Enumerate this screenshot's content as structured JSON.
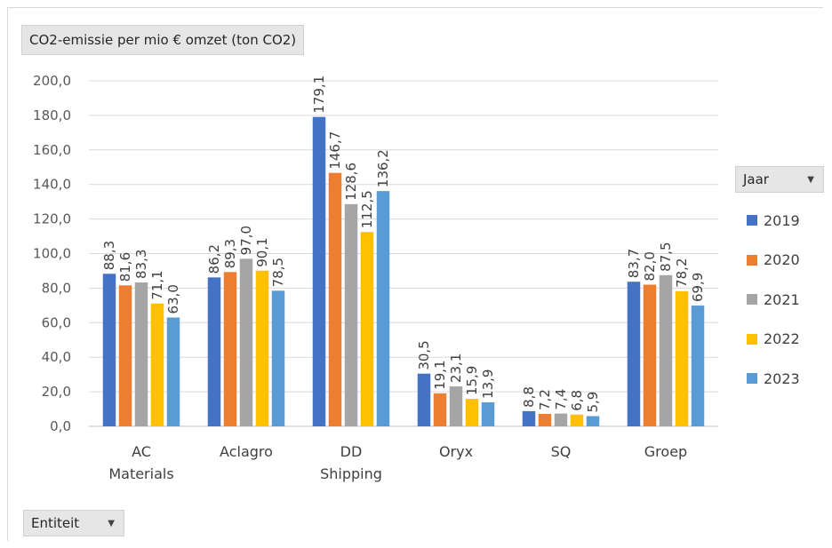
{
  "chart_data": {
    "type": "bar",
    "title": "CO2-emissie per mio  € omzet (ton CO2)",
    "categories": [
      [
        "AC",
        "Materials"
      ],
      [
        "Aclagro"
      ],
      [
        "DD",
        "Shipping"
      ],
      [
        "Oryx"
      ],
      [
        "SQ"
      ],
      [
        "Groep"
      ]
    ],
    "series": [
      {
        "name": "2019",
        "color": "#4472c4",
        "values": [
          88.3,
          86.2,
          179.1,
          30.5,
          8.8,
          83.7
        ],
        "labels": [
          "88,3",
          "86,2",
          "179,1",
          "30,5",
          "8,8",
          "83,7"
        ]
      },
      {
        "name": "2020",
        "color": "#ed7d31",
        "values": [
          81.6,
          89.3,
          146.7,
          19.1,
          7.2,
          82.0
        ],
        "labels": [
          "81,6",
          "89,3",
          "146,7",
          "19,1",
          "7,2",
          "82,0"
        ]
      },
      {
        "name": "2021",
        "color": "#a5a5a5",
        "values": [
          83.3,
          97.0,
          128.6,
          23.1,
          7.4,
          87.5
        ],
        "labels": [
          "83,3",
          "97,0",
          "128,6",
          "23,1",
          "7,4",
          "87,5"
        ]
      },
      {
        "name": "2022",
        "color": "#ffc000",
        "values": [
          71.1,
          90.1,
          112.5,
          15.9,
          6.8,
          78.2
        ],
        "labels": [
          "71,1",
          "90,1",
          "112,5",
          "15,9",
          "6,8",
          "78,2"
        ]
      },
      {
        "name": "2023",
        "color": "#5b9bd5",
        "values": [
          63.0,
          78.5,
          136.2,
          13.9,
          5.9,
          69.9
        ],
        "labels": [
          "63,0",
          "78,5",
          "136,2",
          "13,9",
          "5,9",
          "69,9"
        ]
      }
    ],
    "yticks": [
      "0,0",
      "20,0",
      "40,0",
      "60,0",
      "80,0",
      "100,0",
      "120,0",
      "140,0",
      "160,0",
      "180,0",
      "200,0"
    ],
    "ylim": [
      0,
      200
    ],
    "grid": true,
    "legend_position": "right"
  },
  "legend_button": {
    "label": "Jaar",
    "icon": "dropdown-arrow-icon"
  },
  "filter_button": {
    "label": "Entiteit",
    "icon": "dropdown-arrow-icon"
  }
}
